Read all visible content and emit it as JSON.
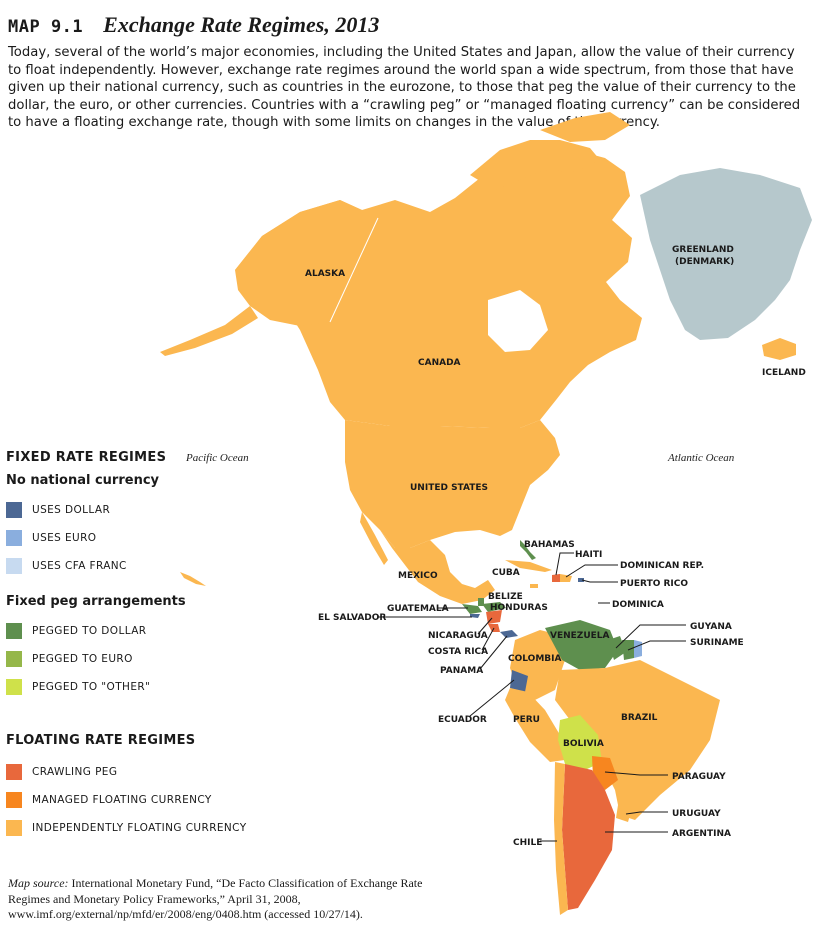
{
  "header": {
    "map_number": "MAP 9.1",
    "title": "Exchange Rate Regimes, 2013"
  },
  "intro": "Today, several of the world’s major economies, including the United States and Japan, allow the value of their currency to float independently. However, exchange rate regimes around the world span a wide spectrum, from those that have given up their national currency, such as countries in the eurozone, to those that peg the value of their currency to the dollar, the euro, or other currencies. Countries with a “crawling peg” or “managed floating currency” can be considered to have a floating exchange rate, though with some limits on changes in the value of the currency.",
  "colors": {
    "independently_floating": "#fbb750",
    "managed_floating": "#f7861f",
    "crawling_peg": "#e8683c",
    "pegged_dollar": "#5e8f4e",
    "pegged_euro": "#95b74a",
    "pegged_other": "#cfe14a",
    "uses_dollar": "#4c6894",
    "uses_euro": "#8aaede",
    "uses_cfa": "#c7daf0",
    "greenland": "#b6c8cc"
  },
  "map": {
    "oceans": {
      "pacific": "Pacific Ocean",
      "atlantic": "Atlantic Ocean"
    },
    "labels": {
      "alaska": "ALASKA",
      "canada": "CANADA",
      "greenland_1": "GREENLAND",
      "greenland_2": "(DENMARK)",
      "iceland": "ICELAND",
      "united_states": "UNITED STATES",
      "mexico": "MEXICO",
      "bahamas": "BAHAMAS",
      "haiti": "HAITI",
      "dominican_rep": "DOMINICAN REP.",
      "cuba": "CUBA",
      "puerto_rico": "PUERTO RICO",
      "belize": "BELIZE",
      "dominica": "DOMINICA",
      "guatemala": "GUATEMALA",
      "honduras": "HONDURAS",
      "el_salvador": "EL SALVADOR",
      "nicaragua": "NICARAGUA",
      "costa_rica": "COSTA RICA",
      "panama": "PANAMA",
      "venezuela": "VENEZUELA",
      "guyana": "GUYANA",
      "suriname": "SURINAME",
      "colombia": "COLOMBIA",
      "ecuador": "ECUADOR",
      "peru": "PERU",
      "brazil": "BRAZIL",
      "bolivia": "BOLIVIA",
      "paraguay": "PARAGUAY",
      "uruguay": "URUGUAY",
      "argentina": "ARGENTINA",
      "chile": "CHILE"
    }
  },
  "legend": {
    "fixed_heading": "FIXED RATE REGIMES",
    "no_currency_heading": "No national currency",
    "uses_dollar": "USES DOLLAR",
    "uses_euro": "USES EURO",
    "uses_cfa": "USES CFA FRANC",
    "peg_heading": "Fixed peg arrangements",
    "pegged_dollar": "PEGGED TO DOLLAR",
    "pegged_euro": "PEGGED TO EURO",
    "pegged_other": "PEGGED TO \"OTHER\"",
    "floating_heading": "FLOATING RATE REGIMES",
    "crawling_peg": "CRAWLING PEG",
    "managed_floating": "MANAGED FLOATING CURRENCY",
    "independently_floating": "INDEPENDENTLY FLOATING CURRENCY"
  },
  "source": {
    "label": "Map source:",
    "text": "International Monetary Fund, “De Facto Classification of Exchange Rate Regimes and Monetary Policy Frameworks,” April 31, 2008, www.imf.org/external/np/mfd/er/2008/eng/0408.htm (accessed 10/27/14)."
  }
}
